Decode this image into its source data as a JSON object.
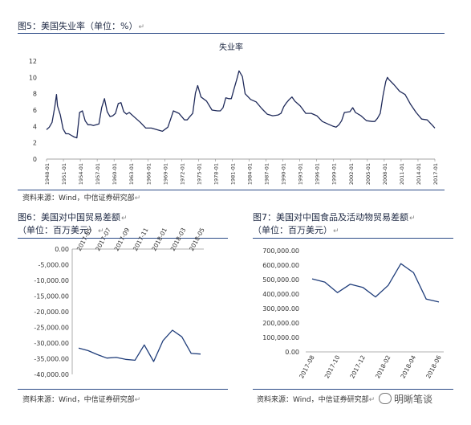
{
  "figure5": {
    "caption": "图5：美国失业率（单位：%）",
    "source": "资料来源：Wind，中信证券研究部",
    "chart_data": {
      "type": "line",
      "title": "失业率",
      "ylim": [
        0,
        12
      ],
      "yticks": [
        0,
        2,
        4,
        6,
        8,
        10,
        12
      ],
      "x_labels": [
        "1948-01",
        "1951-01",
        "1954-01",
        "1957-01",
        "1960-01",
        "1963-01",
        "1966-01",
        "1969-01",
        "1972-01",
        "1975-01",
        "1978-01",
        "1981-01",
        "1984-01",
        "1987-01",
        "1990-01",
        "1993-01",
        "1996-01",
        "1999-01",
        "2002-01",
        "2005-01",
        "2008-01",
        "2011-01",
        "2014-01",
        "2017-01"
      ],
      "x_start": 1948.0,
      "x_end": 2018.4,
      "color": "#1f2a5a",
      "x": [
        1948.0,
        1948.5,
        1949.0,
        1949.5,
        1949.8,
        1950.0,
        1950.5,
        1951.0,
        1951.5,
        1952.0,
        1952.5,
        1953.0,
        1953.5,
        1954.0,
        1954.5,
        1955.0,
        1955.5,
        1956.0,
        1956.5,
        1957.0,
        1957.5,
        1958.0,
        1958.5,
        1959.0,
        1959.5,
        1960.0,
        1960.5,
        1961.0,
        1961.5,
        1962.0,
        1962.5,
        1963.0,
        1964.0,
        1965.0,
        1966.0,
        1967.0,
        1968.0,
        1969.0,
        1970.0,
        1970.5,
        1971.0,
        1972.0,
        1973.0,
        1973.5,
        1974.0,
        1974.5,
        1975.0,
        1975.4,
        1976.0,
        1977.0,
        1978.0,
        1979.0,
        1979.5,
        1980.0,
        1980.5,
        1981.0,
        1981.5,
        1982.0,
        1982.5,
        1982.9,
        1983.5,
        1984.0,
        1985.0,
        1986.0,
        1987.0,
        1988.0,
        1989.0,
        1990.0,
        1990.5,
        1991.0,
        1991.5,
        1992.0,
        1992.5,
        1993.0,
        1994.0,
        1995.0,
        1996.0,
        1997.0,
        1998.0,
        1999.0,
        2000.0,
        2000.5,
        2001.0,
        2001.5,
        2002.0,
        2003.0,
        2003.5,
        2004.0,
        2005.0,
        2006.0,
        2007.0,
        2007.5,
        2008.0,
        2008.5,
        2009.0,
        2009.5,
        2009.8,
        2010.0,
        2011.0,
        2012.0,
        2013.0,
        2014.0,
        2015.0,
        2016.0,
        2017.0,
        2018.0,
        2018.4
      ],
      "values": [
        3.6,
        3.9,
        4.5,
        6.4,
        7.9,
        6.5,
        5.4,
        3.7,
        3.1,
        3.1,
        2.9,
        2.7,
        2.6,
        5.7,
        5.9,
        4.7,
        4.2,
        4.2,
        4.1,
        4.2,
        4.3,
        6.3,
        7.4,
        5.8,
        5.2,
        5.3,
        5.6,
        6.8,
        6.9,
        5.8,
        5.5,
        5.7,
        5.1,
        4.5,
        3.8,
        3.8,
        3.6,
        3.4,
        3.9,
        4.9,
        5.9,
        5.6,
        4.8,
        4.8,
        5.2,
        5.6,
        8.1,
        9.0,
        7.6,
        7.1,
        6.0,
        5.9,
        5.9,
        6.3,
        7.5,
        7.4,
        7.4,
        8.6,
        9.8,
        10.8,
        10.1,
        8.0,
        7.3,
        7.0,
        6.2,
        5.5,
        5.3,
        5.4,
        5.6,
        6.4,
        6.9,
        7.3,
        7.6,
        7.1,
        6.5,
        5.6,
        5.6,
        5.3,
        4.6,
        4.3,
        4.0,
        3.9,
        4.2,
        4.7,
        5.7,
        5.8,
        6.3,
        5.7,
        5.3,
        4.7,
        4.6,
        4.6,
        5.0,
        5.6,
        7.8,
        9.5,
        10.0,
        9.8,
        9.1,
        8.3,
        7.9,
        6.7,
        5.7,
        4.9,
        4.8,
        4.1,
        3.8
      ]
    }
  },
  "figure6": {
    "caption1": "图6：美国对中国贸易差额",
    "caption2": "（单位：百万美元）",
    "source": "资料来源：Wind，中信证券研究部",
    "chart_data": {
      "type": "line",
      "ylim": [
        -40000,
        0
      ],
      "yticks": [
        0,
        -5000,
        -10000,
        -15000,
        -20000,
        -25000,
        -30000,
        -35000,
        -40000
      ],
      "ytick_labels": [
        "0.00",
        "-5,000.00",
        "-10,000.00",
        "-15,000.00",
        "-20,000.00",
        "-25,000.00",
        "-30,000.00",
        "-35,000.00",
        "-40,000.00"
      ],
      "x_labels": [
        "2017-05",
        "2017-07",
        "2017-09",
        "2017-11",
        "2018-01",
        "2018-03",
        "2018-05"
      ],
      "color": "#1f3d7a",
      "values": [
        -31600,
        -32400,
        -33700,
        -34800,
        -34600,
        -35200,
        -35500,
        -30600,
        -35900,
        -29200,
        -25900,
        -28000,
        -33300,
        -33500
      ]
    }
  },
  "figure7": {
    "caption1": "图7：美国对中国食品及活动物贸易差额",
    "caption2": "（单位：百万美元）",
    "source": "资料来源：Wind，中信证券研究部",
    "chart_data": {
      "type": "line",
      "ylim": [
        0,
        700000
      ],
      "yticks": [
        0,
        100000,
        200000,
        300000,
        400000,
        500000,
        600000,
        700000
      ],
      "ytick_labels": [
        "0.00",
        "100,000.00",
        "200,000.00",
        "300,000.00",
        "400,000.00",
        "500,000.00",
        "600,000.00",
        "700,000.00"
      ],
      "x_labels": [
        "2017-08",
        "2017-10",
        "2017-12",
        "2018-02",
        "2018-04",
        "2018-06"
      ],
      "color": "#1f3d7a",
      "values": [
        505000,
        483000,
        410000,
        468000,
        446000,
        380000,
        460000,
        610000,
        548000,
        365000,
        345000
      ]
    }
  },
  "watermark": "明晰笔谈"
}
